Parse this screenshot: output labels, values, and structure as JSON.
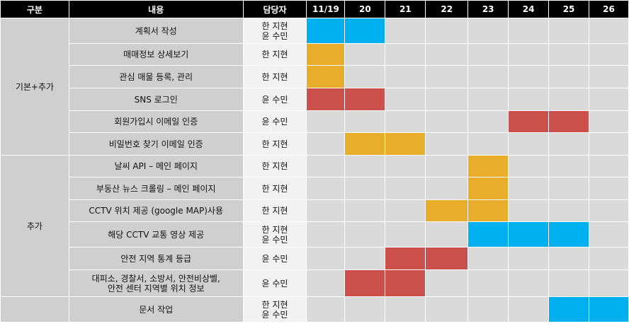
{
  "headers": [
    "구분",
    "내용",
    "담당자",
    "11/19",
    "20",
    "21",
    "22",
    "23",
    "24",
    "25",
    "26"
  ],
  "colors": {
    "blue": "#00b0f0",
    "orange": "#e8ad2b",
    "red": "#cb4f4a",
    "empty": "#dadada"
  },
  "groups": [
    {
      "name": "기본+추가",
      "rows": 6
    },
    {
      "name": "추가",
      "rows": 6
    },
    {
      "name": "",
      "rows": 1
    }
  ],
  "rows": [
    {
      "task": "계획서 작성",
      "owner": "한 지현\n윤 수민",
      "cells": [
        "blue",
        "blue",
        "",
        "",
        "",
        "",
        "",
        ""
      ]
    },
    {
      "task": "매매정보 상세보기",
      "owner": "한 지현",
      "cells": [
        "orange",
        "",
        "",
        "",
        "",
        "",
        "",
        ""
      ]
    },
    {
      "task": "관심 매물 등록, 관리",
      "owner": "한 지현",
      "cells": [
        "orange",
        "",
        "",
        "",
        "",
        "",
        "",
        ""
      ]
    },
    {
      "task": "SNS 로그인",
      "owner": "윤 수민",
      "cells": [
        "red",
        "red",
        "",
        "",
        "",
        "",
        "",
        ""
      ]
    },
    {
      "task": "회원가입시 이메일 인증",
      "owner": "윤 수민",
      "cells": [
        "",
        "",
        "",
        "",
        "",
        "red",
        "red",
        ""
      ]
    },
    {
      "task": "비밀번호 찾기 이메일 인증",
      "owner": "한 지현",
      "cells": [
        "",
        "orange",
        "orange",
        "",
        "",
        "",
        "",
        ""
      ]
    },
    {
      "task": "날씨 API – 메인 페이지",
      "owner": "한 지현",
      "cells": [
        "",
        "",
        "",
        "",
        "orange",
        "",
        "",
        ""
      ]
    },
    {
      "task": "부동산 뉴스 크롤링 – 메인 페이지",
      "owner": "한 지현",
      "cells": [
        "",
        "",
        "",
        "",
        "orange",
        "",
        "",
        ""
      ]
    },
    {
      "task": "CCTV 위치 제공 (google MAP)사용",
      "owner": "한 지현",
      "cells": [
        "",
        "",
        "",
        "orange",
        "orange",
        "",
        "",
        ""
      ]
    },
    {
      "task": "해당 CCTV 교통 영상 제공",
      "owner": "한 지현\n윤 수민",
      "cells": [
        "",
        "",
        "",
        "",
        "blue",
        "blue",
        "blue",
        ""
      ]
    },
    {
      "task": "안전 지역 통계 등급",
      "owner": "윤 수민",
      "cells": [
        "",
        "",
        "red",
        "red",
        "",
        "",
        "",
        ""
      ]
    },
    {
      "task": "대피소, 경찰서, 소방서, 안전비상벨,\n안전 센터 지역별 위치 정보",
      "owner": "윤 수민",
      "cells": [
        "",
        "red",
        "red",
        "",
        "",
        "",
        "",
        ""
      ]
    },
    {
      "task": "문서 작업",
      "owner": "한 지현\n윤 수민",
      "cells": [
        "",
        "",
        "",
        "",
        "",
        "",
        "blue",
        "blue"
      ]
    }
  ]
}
